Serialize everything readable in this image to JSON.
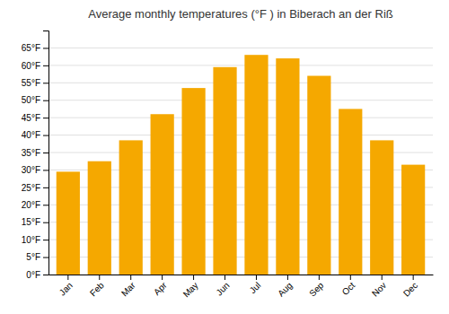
{
  "chart_data": {
    "type": "bar",
    "title": "Average monthly temperatures (°F ) in Biberach an der Riß",
    "categories": [
      "Jan",
      "Feb",
      "Mar",
      "Apr",
      "May",
      "Jun",
      "Jul",
      "Aug",
      "Sep",
      "Oct",
      "Nov",
      "Dec"
    ],
    "values": [
      29.5,
      32.5,
      38.5,
      46.0,
      53.5,
      59.5,
      63.0,
      62.0,
      57.0,
      47.5,
      38.5,
      31.5
    ],
    "color": "#F5A800",
    "ylim": [
      0,
      70
    ],
    "yticks": [
      {
        "value": 0,
        "label": "0°F"
      },
      {
        "value": 5,
        "label": "5°F"
      },
      {
        "value": 10,
        "label": "10°F"
      },
      {
        "value": 15,
        "label": "15°F"
      },
      {
        "value": 20,
        "label": "20°F"
      },
      {
        "value": 25,
        "label": "25°F"
      },
      {
        "value": 30,
        "label": "30°F"
      },
      {
        "value": 35,
        "label": "35°F"
      },
      {
        "value": 40,
        "label": "40°F"
      },
      {
        "value": 45,
        "label": "45°F"
      },
      {
        "value": 50,
        "label": "50°F"
      },
      {
        "value": 55,
        "label": "55°F"
      },
      {
        "value": 60,
        "label": "60°F"
      },
      {
        "value": 65,
        "label": "65°F"
      }
    ],
    "grid": true
  }
}
